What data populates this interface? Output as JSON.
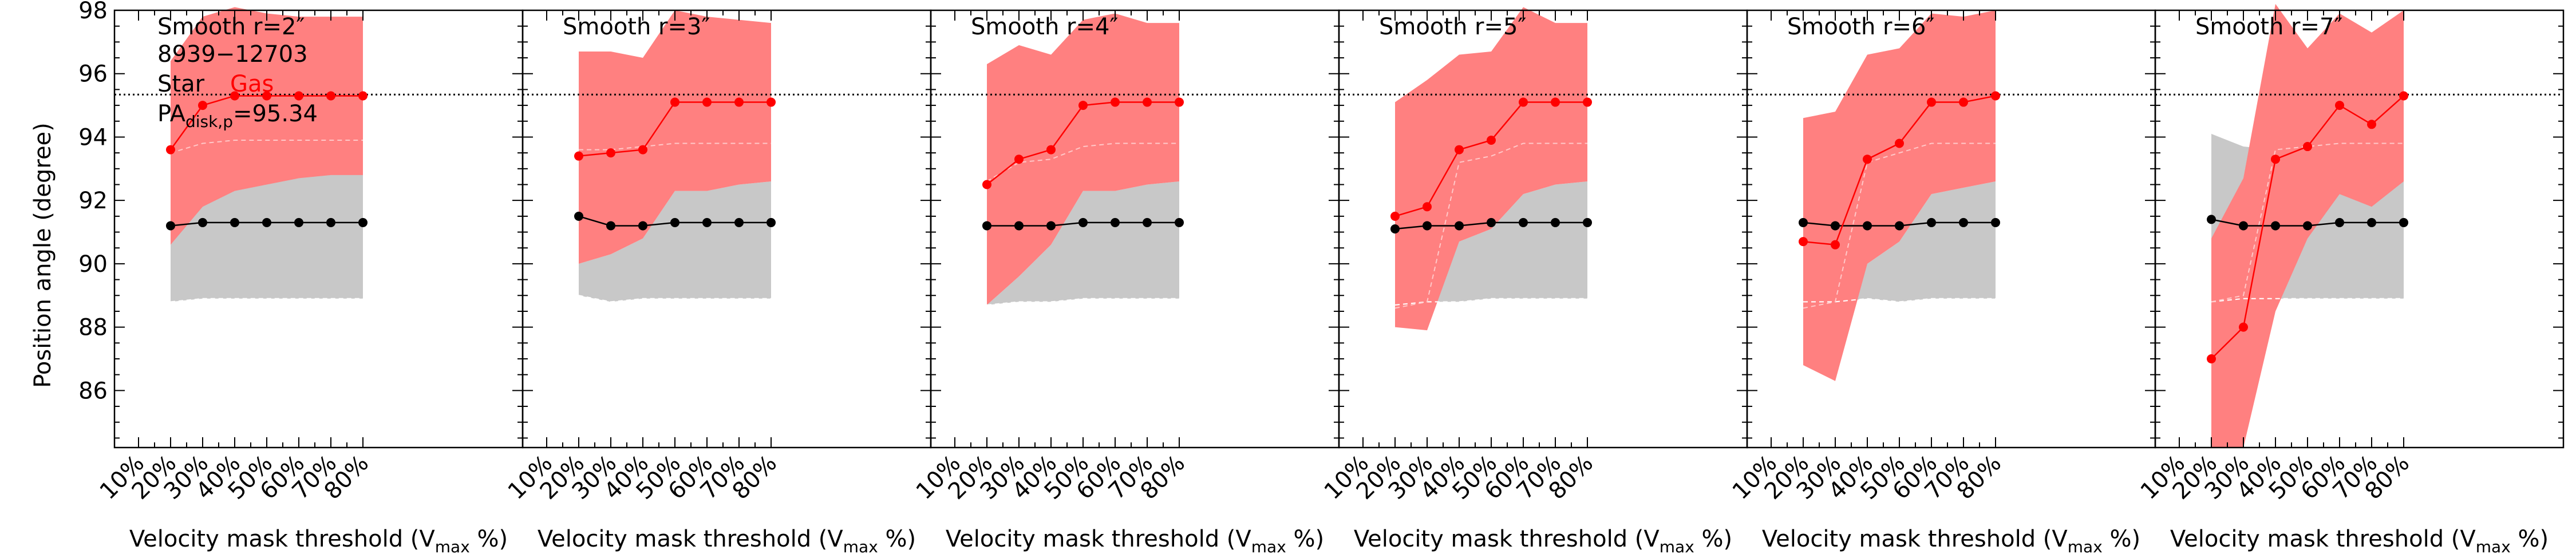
{
  "figure": {
    "ylabel": "Position angle (degree)",
    "xlabel_main": "Velocity mask threshold (V",
    "xlabel_sub": "max",
    "xlabel_tail": " %)",
    "ref_line_y": 95.34,
    "legend": {
      "id": "8939−12703",
      "star_label": "Star",
      "gas_label": "Gas",
      "pa_main": "PA",
      "pa_sub": "disk,p",
      "pa_value": "=95.34"
    }
  },
  "colors": {
    "gas": "#ff0000",
    "gas_band": "#ff8080",
    "star": "#000000",
    "star_band": "#c8c8c8",
    "dashed_gas": "#ffc8c8",
    "dashed_star": "#ffffff"
  },
  "chart_data": [
    {
      "type": "line",
      "title": "Smooth r=2″",
      "x": [
        20,
        30,
        40,
        50,
        60,
        70,
        80
      ],
      "x_ticks": [
        "10%",
        "20%",
        "30%",
        "40%",
        "50%",
        "60%",
        "70%",
        "80%"
      ],
      "ylim": [
        84.2,
        98
      ],
      "series": [
        {
          "name": "Star",
          "values": [
            91.2,
            91.3,
            91.3,
            91.3,
            91.3,
            91.3,
            91.3
          ],
          "band_low": [
            88.8,
            88.9,
            88.9,
            88.9,
            88.9,
            88.9,
            88.9
          ],
          "band_high": [
            91.0,
            92.1,
            92.4,
            92.7,
            92.9,
            92.9,
            92.9
          ],
          "band_dash": [
            88.8,
            88.9,
            88.9,
            88.9,
            88.9,
            88.9,
            88.9
          ]
        },
        {
          "name": "Gas",
          "values": [
            93.6,
            95.0,
            95.3,
            95.3,
            95.3,
            95.3,
            95.3
          ],
          "band_low": [
            90.6,
            91.8,
            92.3,
            92.5,
            92.7,
            92.8,
            92.8
          ],
          "band_high": [
            96.4,
            97.8,
            98.1,
            97.9,
            97.8,
            97.8,
            97.8
          ],
          "band_dash": [
            93.5,
            93.8,
            93.9,
            93.9,
            93.9,
            93.9,
            93.9
          ]
        }
      ]
    },
    {
      "type": "line",
      "title": "Smooth r=3″",
      "x": [
        20,
        30,
        40,
        50,
        60,
        70,
        80
      ],
      "x_ticks": [
        "10%",
        "20%",
        "30%",
        "40%",
        "50%",
        "60%",
        "70%",
        "80%"
      ],
      "ylim": [
        84.2,
        98
      ],
      "series": [
        {
          "name": "Star",
          "values": [
            91.5,
            91.2,
            91.2,
            91.3,
            91.3,
            91.3,
            91.3
          ],
          "band_low": [
            89.0,
            88.8,
            88.9,
            88.9,
            88.9,
            88.9,
            88.9
          ],
          "band_high": [
            90.0,
            90.3,
            90.8,
            92.3,
            92.3,
            92.5,
            92.6
          ],
          "band_dash": [
            89.0,
            88.8,
            88.9,
            88.9,
            88.9,
            88.9,
            88.9
          ]
        },
        {
          "name": "Gas",
          "values": [
            93.4,
            93.5,
            93.6,
            95.1,
            95.1,
            95.1,
            95.1
          ],
          "band_low": [
            90.0,
            90.3,
            90.8,
            92.3,
            92.3,
            92.5,
            92.6
          ],
          "band_high": [
            96.7,
            96.7,
            96.5,
            98.0,
            97.8,
            97.7,
            97.6
          ],
          "band_dash": [
            93.6,
            93.6,
            93.7,
            93.8,
            93.8,
            93.8,
            93.8
          ]
        }
      ]
    },
    {
      "type": "line",
      "title": "Smooth r=4″",
      "x": [
        20,
        30,
        40,
        50,
        60,
        70,
        80
      ],
      "x_ticks": [
        "10%",
        "20%",
        "30%",
        "40%",
        "50%",
        "60%",
        "70%",
        "80%"
      ],
      "ylim": [
        84.2,
        98
      ],
      "series": [
        {
          "name": "Star",
          "values": [
            91.2,
            91.2,
            91.2,
            91.3,
            91.3,
            91.3,
            91.3
          ],
          "band_low": [
            88.7,
            88.8,
            88.8,
            88.9,
            88.9,
            88.9,
            88.9
          ],
          "band_high": [
            88.7,
            89.6,
            90.6,
            92.3,
            92.3,
            92.5,
            92.6
          ],
          "band_dash": [
            88.7,
            88.8,
            88.8,
            88.9,
            88.9,
            88.9,
            88.9
          ]
        },
        {
          "name": "Gas",
          "values": [
            92.5,
            93.3,
            93.6,
            95.0,
            95.1,
            95.1,
            95.1
          ],
          "band_low": [
            88.7,
            89.6,
            90.6,
            92.3,
            92.3,
            92.5,
            92.6
          ],
          "band_high": [
            96.3,
            96.9,
            96.6,
            97.7,
            97.9,
            97.6,
            97.6
          ],
          "band_dash": [
            92.6,
            93.2,
            93.3,
            93.7,
            93.8,
            93.8,
            93.8
          ]
        }
      ]
    },
    {
      "type": "line",
      "title": "Smooth r=5″",
      "x": [
        20,
        30,
        40,
        50,
        60,
        70,
        80
      ],
      "x_ticks": [
        "10%",
        "20%",
        "30%",
        "40%",
        "50%",
        "60%",
        "70%",
        "80%"
      ],
      "ylim": [
        84.2,
        98
      ],
      "series": [
        {
          "name": "Star",
          "values": [
            91.1,
            91.2,
            91.2,
            91.3,
            91.3,
            91.3,
            91.3
          ],
          "band_low": [
            88.7,
            88.8,
            88.8,
            88.9,
            88.9,
            88.9,
            88.9
          ],
          "band_high": [
            88.7,
            88.8,
            90.7,
            91.1,
            92.2,
            92.5,
            92.6
          ],
          "band_dash": [
            88.7,
            88.8,
            88.8,
            88.9,
            88.9,
            88.9,
            88.9
          ]
        },
        {
          "name": "Gas",
          "values": [
            91.5,
            91.8,
            93.6,
            93.9,
            95.1,
            95.1,
            95.1
          ],
          "band_low": [
            88.0,
            87.9,
            90.7,
            91.1,
            92.2,
            92.5,
            92.6
          ],
          "band_high": [
            95.1,
            95.8,
            96.6,
            96.7,
            98.1,
            97.6,
            97.6
          ],
          "band_dash": [
            88.6,
            88.8,
            93.2,
            93.4,
            93.8,
            93.8,
            93.8
          ]
        }
      ]
    },
    {
      "type": "line",
      "title": "Smooth r=6″",
      "x": [
        20,
        30,
        40,
        50,
        60,
        70,
        80
      ],
      "x_ticks": [
        "10%",
        "20%",
        "30%",
        "40%",
        "50%",
        "60%",
        "70%",
        "80%"
      ],
      "ylim": [
        84.2,
        98
      ],
      "series": [
        {
          "name": "Star",
          "values": [
            91.3,
            91.2,
            91.2,
            91.2,
            91.3,
            91.3,
            91.3
          ],
          "band_low": [
            88.8,
            88.8,
            88.9,
            88.8,
            88.9,
            88.9,
            88.9
          ],
          "band_high": [
            88.8,
            88.8,
            90.0,
            90.7,
            92.2,
            92.4,
            92.6
          ],
          "band_dash": [
            88.8,
            88.8,
            88.9,
            88.8,
            88.9,
            88.9,
            88.9
          ]
        },
        {
          "name": "Gas",
          "values": [
            90.7,
            90.6,
            93.3,
            93.8,
            95.1,
            95.1,
            95.3
          ],
          "band_low": [
            86.8,
            86.3,
            90.0,
            90.7,
            92.2,
            92.4,
            92.6
          ],
          "band_high": [
            94.6,
            94.8,
            96.6,
            96.8,
            97.9,
            97.8,
            98.0
          ],
          "band_dash": [
            88.6,
            88.8,
            93.2,
            93.5,
            93.8,
            93.8,
            93.8
          ]
        }
      ]
    },
    {
      "type": "line",
      "title": "Smooth r=7″",
      "x": [
        20,
        30,
        40,
        50,
        60,
        70,
        80
      ],
      "x_ticks": [
        "10%",
        "20%",
        "30%",
        "40%",
        "50%",
        "60%",
        "70%",
        "80%"
      ],
      "ylim": [
        84.2,
        98
      ],
      "series": [
        {
          "name": "Star",
          "values": [
            91.4,
            91.2,
            91.2,
            91.2,
            91.3,
            91.3,
            91.3
          ],
          "band_low": [
            88.8,
            88.9,
            88.9,
            88.9,
            88.9,
            88.9,
            88.9
          ],
          "band_high": [
            94.1,
            93.7,
            93.6,
            93.7,
            93.7,
            93.7,
            93.7
          ],
          "band_dash": [
            88.8,
            88.9,
            88.9,
            88.9,
            88.9,
            88.9,
            88.9
          ]
        },
        {
          "name": "Gas",
          "values": [
            87.0,
            88.0,
            93.3,
            93.7,
            95.0,
            94.4,
            95.3
          ],
          "band_low": [
            84.2,
            84.2,
            88.5,
            90.8,
            92.2,
            91.8,
            92.6
          ],
          "band_high": [
            90.8,
            92.7,
            98.2,
            96.8,
            97.9,
            97.3,
            98.0
          ],
          "band_dash": [
            88.8,
            89.0,
            93.6,
            93.7,
            93.8,
            93.8,
            93.8
          ]
        }
      ]
    }
  ]
}
